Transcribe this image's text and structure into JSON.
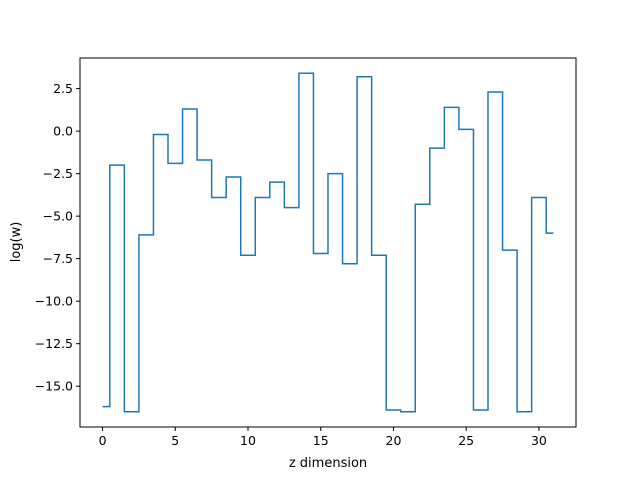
{
  "chart_data": {
    "type": "line",
    "drawstyle": "steps-mid",
    "title": "",
    "xlabel": "z dimension",
    "ylabel": "log(w)",
    "xlim": [
      -1.55,
      32.55
    ],
    "ylim": [
      -17.4,
      4.3
    ],
    "xticks": [
      0,
      5,
      10,
      15,
      20,
      25,
      30
    ],
    "xtick_labels": [
      "0",
      "5",
      "10",
      "15",
      "20",
      "25",
      "30"
    ],
    "yticks": [
      2.5,
      0.0,
      -2.5,
      -5.0,
      -7.5,
      -10.0,
      -12.5,
      -15.0
    ],
    "ytick_labels": [
      "2.5",
      "0.0",
      "−2.5",
      "−5.0",
      "−7.5",
      "−10.0",
      "−12.5",
      "−15.0"
    ],
    "grid": false,
    "series": [
      {
        "color": "#1f77b4",
        "x": [
          0,
          1,
          2,
          3,
          4,
          5,
          6,
          7,
          8,
          9,
          10,
          11,
          12,
          13,
          14,
          15,
          16,
          17,
          18,
          19,
          20,
          21,
          22,
          23,
          24,
          25,
          26,
          27,
          28,
          29,
          30,
          31
        ],
        "y": [
          -16.2,
          -2.0,
          -16.5,
          -6.1,
          -0.2,
          -1.9,
          1.3,
          -1.7,
          -3.9,
          -2.7,
          -7.3,
          -3.9,
          -3.0,
          -4.5,
          3.4,
          -7.2,
          -2.5,
          -7.8,
          3.2,
          -7.3,
          -16.4,
          -16.5,
          -4.3,
          -1.0,
          1.4,
          0.1,
          -16.4,
          2.3,
          -7.0,
          -16.5,
          -3.9,
          -6.0
        ]
      }
    ]
  }
}
